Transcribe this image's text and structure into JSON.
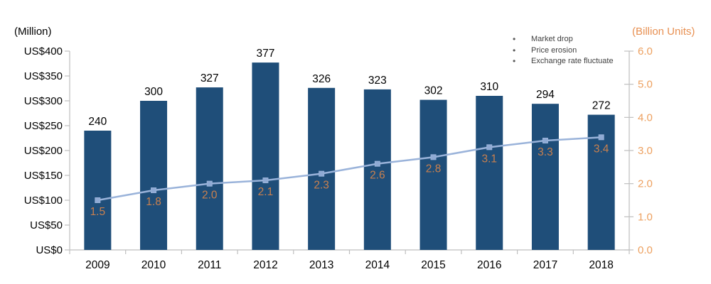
{
  "chart_data": {
    "type": "combo-bar-line",
    "categories": [
      "2009",
      "2010",
      "2011",
      "2012",
      "2013",
      "2014",
      "2015",
      "2016",
      "2017",
      "2018"
    ],
    "series": [
      {
        "role": "bar",
        "axis": "left",
        "values": [
          240,
          300,
          327,
          377,
          326,
          323,
          302,
          310,
          294,
          272
        ]
      },
      {
        "role": "line",
        "axis": "right",
        "values": [
          1.5,
          1.8,
          2.0,
          2.1,
          2.3,
          2.6,
          2.8,
          3.1,
          3.3,
          3.4
        ]
      }
    ],
    "left_axis": {
      "title": "(Million)",
      "min": 0,
      "max": 400,
      "step": 50,
      "tick_prefix": "US$",
      "tick_labels": [
        "US$0",
        "US$50",
        "US$100",
        "US$150",
        "US$200",
        "US$250",
        "US$300",
        "US$350",
        "US$400"
      ]
    },
    "right_axis": {
      "title": "(Billion Units)",
      "min": 0,
      "max": 6,
      "step": 1,
      "tick_labels": [
        "0.0",
        "1.0",
        "2.0",
        "3.0",
        "4.0",
        "5.0",
        "6.0"
      ]
    },
    "annotations": {
      "bullet": "•",
      "items": [
        "Market drop",
        "Price erosion",
        "Exchange rate fluctuate"
      ]
    },
    "grid": false,
    "legend_position": "none",
    "colors": {
      "bar": "#1F4E79",
      "line": "#9AB3DA",
      "marker": "#8FAAD4",
      "bar_value_label": "#000000",
      "line_value_label": "#C9804E",
      "left_axis_text": "#000000",
      "right_axis_text": "#EDA05F",
      "right_axis_title": "#E89052",
      "axis_line": "#BFBFBF",
      "category_text": "#000000"
    }
  }
}
